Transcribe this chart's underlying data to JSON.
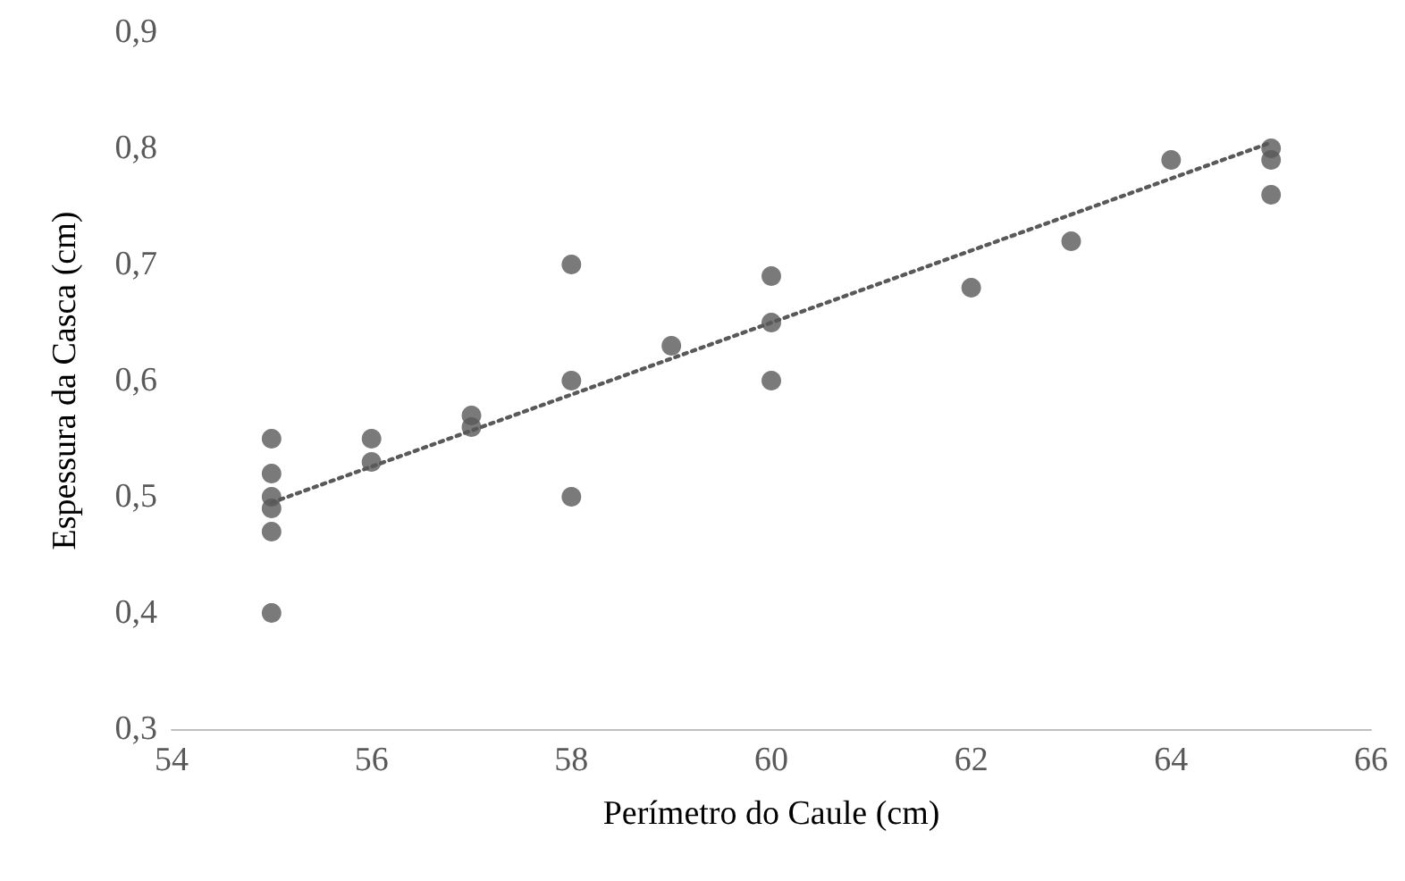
{
  "chart_data": {
    "type": "scatter",
    "xlabel": "Perímetro do Caule (cm)",
    "ylabel": "Espessura da Casca (cm)",
    "marker": "circle",
    "xlim": [
      54,
      66
    ],
    "xticks": [
      54,
      56,
      58,
      60,
      62,
      64,
      66
    ],
    "ylim": [
      0.3,
      0.9
    ],
    "yticks": [
      {
        "value": 0.3,
        "label": "0,3"
      },
      {
        "value": 0.4,
        "label": "0,4"
      },
      {
        "value": 0.5,
        "label": "0,5"
      },
      {
        "value": 0.6,
        "label": "0,6"
      },
      {
        "value": 0.7,
        "label": "0,7"
      },
      {
        "value": 0.8,
        "label": "0,8"
      },
      {
        "value": 0.9,
        "label": "0,9"
      }
    ],
    "series": [
      {
        "color": "#595959",
        "x": [
          55,
          55,
          55,
          55,
          55,
          55,
          56,
          56,
          57,
          57,
          58,
          58,
          58,
          59,
          60,
          60,
          60,
          62,
          63,
          64,
          65,
          65,
          65
        ],
        "values": [
          0.55,
          0.52,
          0.5,
          0.49,
          0.47,
          0.4,
          0.55,
          0.53,
          0.57,
          0.56,
          0.7,
          0.6,
          0.5,
          0.63,
          0.69,
          0.65,
          0.6,
          0.68,
          0.72,
          0.79,
          0.8,
          0.79,
          0.76
        ]
      },
      {
        "type": "line",
        "color": "#595959",
        "line_style": "dotted",
        "marker": "none",
        "x": [
          55,
          65
        ],
        "values": [
          0.495,
          0.805
        ]
      }
    ]
  }
}
